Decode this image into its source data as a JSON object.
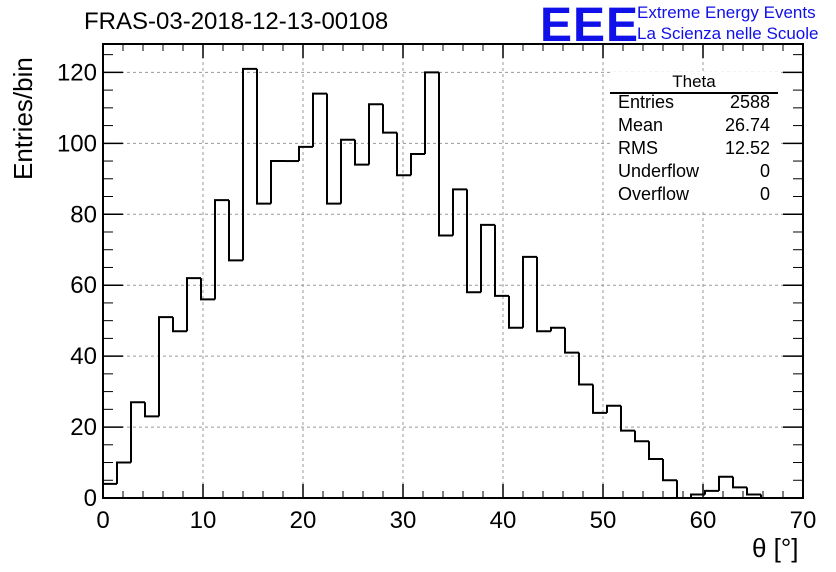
{
  "chart_data": {
    "type": "bar",
    "title": "FRAS-03-2018-12-13-00108",
    "xlabel": "θ [°]",
    "ylabel": "Entries/bin",
    "xlim": [
      0,
      70
    ],
    "ylim": [
      0,
      128
    ],
    "xticks": [
      "0",
      "10",
      "20",
      "30",
      "40",
      "50",
      "60",
      "70"
    ],
    "yticks": [
      "0",
      "20",
      "40",
      "60",
      "80",
      "100",
      "120"
    ],
    "grid": true,
    "bin_width": 1.4,
    "bin_start": 0,
    "values": [
      4,
      10,
      27,
      23,
      51,
      47,
      62,
      56,
      84,
      67,
      121,
      83,
      95,
      95,
      99,
      114,
      83,
      101,
      94,
      111,
      103,
      91,
      97,
      120,
      74,
      87,
      58,
      77,
      57,
      48,
      68,
      47,
      48,
      41,
      32,
      24,
      26,
      19,
      16,
      11,
      5,
      0,
      1,
      2,
      6,
      3,
      1,
      0,
      0,
      0
    ],
    "line_color": "#000000"
  },
  "stats_box": {
    "title": "Theta",
    "rows": [
      {
        "key": "Entries",
        "value": "2588"
      },
      {
        "key": "Mean",
        "value": "26.74"
      },
      {
        "key": "RMS",
        "value": "12.52"
      },
      {
        "key": "Underflow",
        "value": "0"
      },
      {
        "key": "Overflow",
        "value": "0"
      }
    ]
  },
  "logo": {
    "mark": "EEE",
    "line1": "Extreme Energy Events",
    "line2": "La Scienza nelle Scuole",
    "color": "#1010e8"
  }
}
